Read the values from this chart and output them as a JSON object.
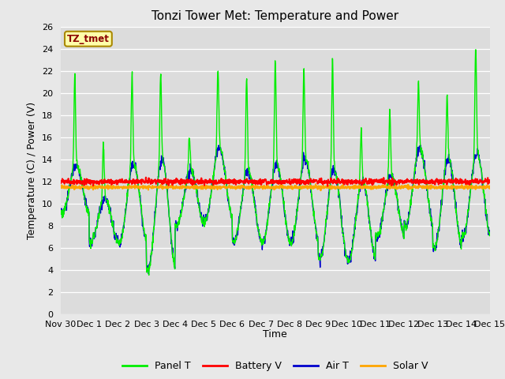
{
  "title": "Tonzi Tower Met: Temperature and Power",
  "xlabel": "Time",
  "ylabel": "Temperature (C) / Power (V)",
  "tz_label": "TZ_tmet",
  "ylim": [
    0,
    26
  ],
  "yticks": [
    0,
    2,
    4,
    6,
    8,
    10,
    12,
    14,
    16,
    18,
    20,
    22,
    24,
    26
  ],
  "xtick_labels": [
    "Nov 30",
    "Dec 1",
    "Dec 2",
    "Dec 3",
    "Dec 4",
    "Dec 5",
    "Dec 6",
    "Dec 7",
    "Dec 8",
    "Dec 9",
    "Dec 10",
    "Dec 11",
    "Dec 12",
    "Dec 13",
    "Dec 14",
    "Dec 15"
  ],
  "colors": {
    "panel_t": "#00EE00",
    "battery_v": "#FF0000",
    "air_t": "#0000CC",
    "solar_v": "#FFA500"
  },
  "legend_labels": [
    "Panel T",
    "Battery V",
    "Air T",
    "Solar V"
  ],
  "fig_bg_color": "#E8E8E8",
  "plot_bg_color": "#DCDCDC",
  "grid_color": "#FFFFFF",
  "title_fontsize": 11,
  "axis_fontsize": 9,
  "tick_fontsize": 8
}
